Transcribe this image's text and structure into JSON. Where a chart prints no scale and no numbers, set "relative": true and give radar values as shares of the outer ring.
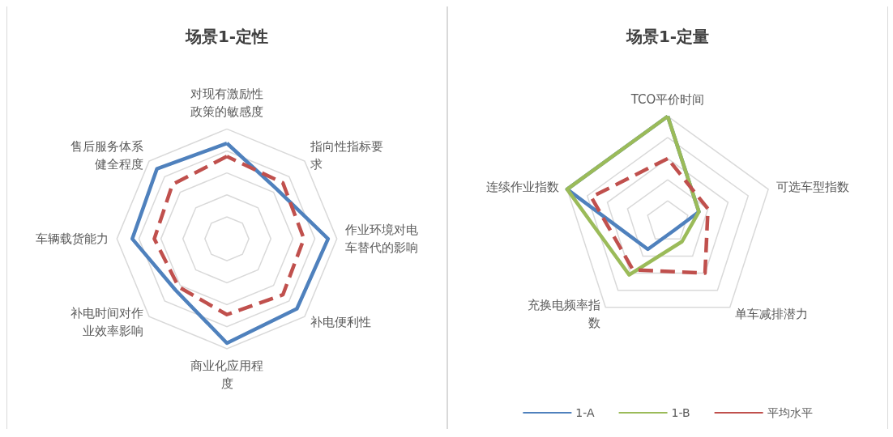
{
  "chart_data": [
    {
      "type": "radar",
      "title": "场景1-定性",
      "relative": true,
      "grid": true,
      "marker": "none",
      "categories": [
        "对现有激励性政策的敏感度",
        "指向性指标要求",
        "作业环境对电车替代的影响",
        "补电便利性",
        "商业化应用程度",
        "补电时间对作业效率影响",
        "车辆载货能力",
        "售后服务体系健全程度"
      ],
      "series": [
        {
          "color": "#4f81bd",
          "line_style": "solid",
          "values": [
            0.87,
            0.64,
            0.92,
            0.9,
            0.95,
            0.66,
            0.86,
            0.9
          ]
        },
        {
          "color": "#c0504d",
          "line_style": "dashed",
          "values": [
            0.75,
            0.72,
            0.7,
            0.72,
            0.69,
            0.62,
            0.66,
            0.7
          ]
        }
      ]
    },
    {
      "type": "radar",
      "title": "场景1-定量",
      "relative": true,
      "grid": true,
      "marker": "none",
      "legend": "bottom",
      "categories": [
        "TCO平价时间",
        "可选车型指数",
        "单车减排潜力",
        "充换电频率指数",
        "连续作业指数"
      ],
      "series": [
        {
          "name": "1-A",
          "color": "#4f81bd",
          "line_style": "solid",
          "values": [
            1,
            0.31,
            0.1,
            0.32,
            1
          ]
        },
        {
          "name": "1-B",
          "color": "#9bbb59",
          "line_style": "solid",
          "values": [
            1,
            0.31,
            0.23,
            0.62,
            1
          ]
        },
        {
          "name": "平均水平",
          "color": "#c0504d",
          "line_style": "dashed",
          "values": [
            0.6,
            0.4,
            0.6,
            0.56,
            0.76
          ]
        }
      ]
    }
  ]
}
